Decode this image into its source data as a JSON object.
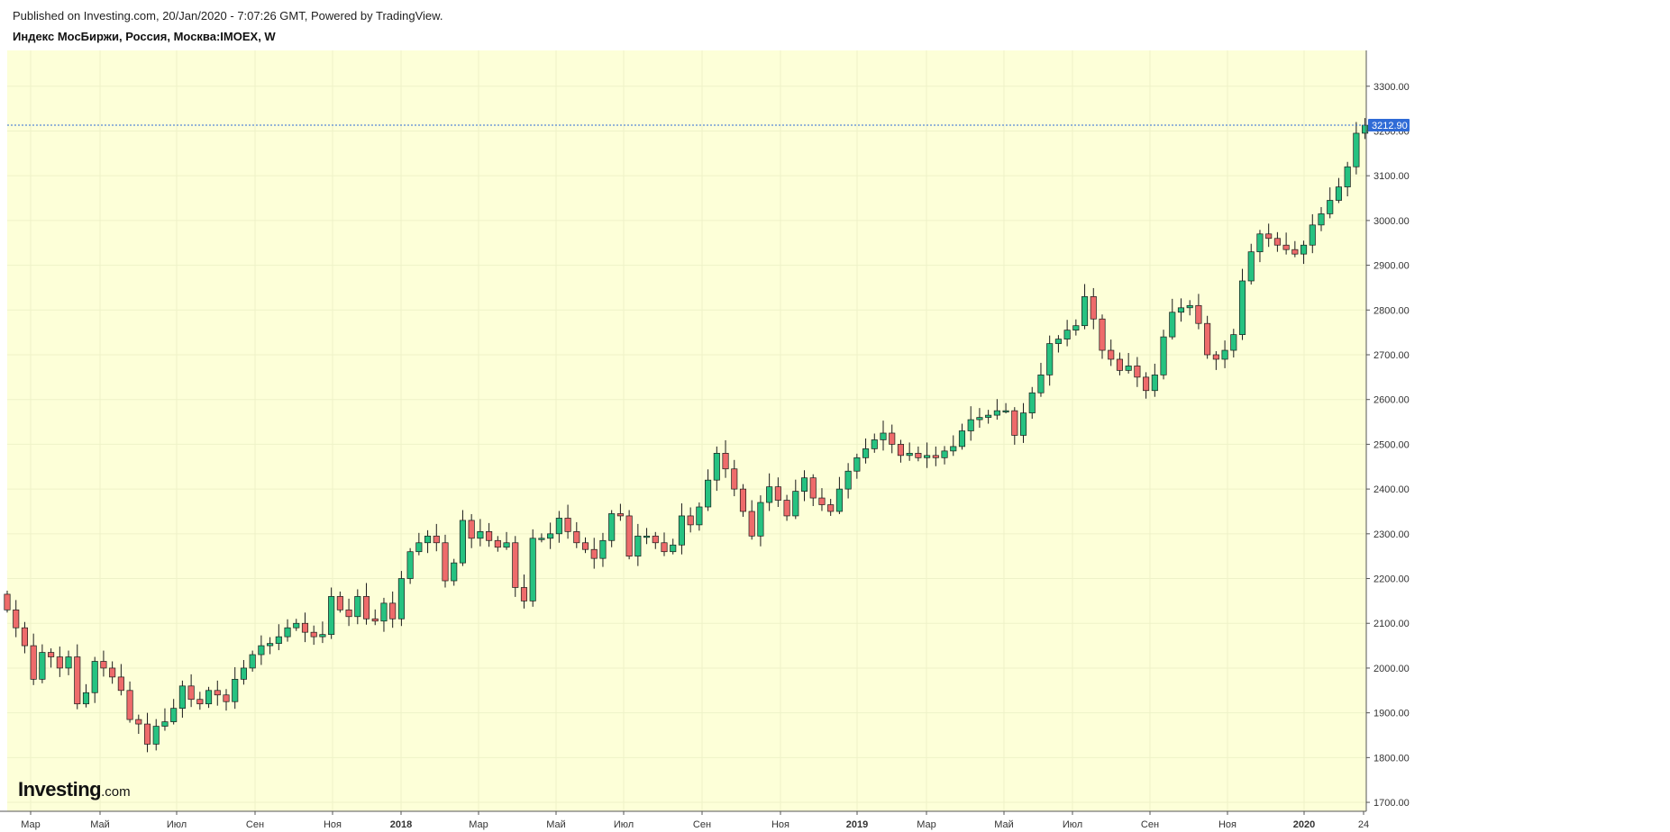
{
  "header": {
    "published": "Published on Investing.com, 20/Jan/2020 - 7:07:26 GMT, Powered by TradingView.",
    "symbol": "Индекс МосБиржи, Россия, Москва:IMOEX, W"
  },
  "logo": {
    "brand": "Investing",
    "suffix": ".com"
  },
  "colors": {
    "background": "#fdffd8",
    "up": "#26c281",
    "down": "#ee6b6b",
    "last_price": "#2f6bd6"
  },
  "chart_data": {
    "type": "candlestick",
    "interval": "W",
    "y_range": [
      1680,
      3380
    ],
    "y_ticks": [
      "1700.00",
      "1800.00",
      "1900.00",
      "2000.00",
      "2100.00",
      "2200.00",
      "2300.00",
      "2400.00",
      "2500.00",
      "2600.00",
      "2700.00",
      "2800.00",
      "2900.00",
      "3000.00",
      "3100.00",
      "3200.00",
      "3300.00"
    ],
    "y_position": "right",
    "last_price": "3212.90",
    "x_labels": [
      "Мар",
      "Май",
      "Июл",
      "Сен",
      "Ноя",
      "2018",
      "Мар",
      "Май",
      "Июл",
      "Сен",
      "Ноя",
      "2019",
      "Мар",
      "Май",
      "Июл",
      "Сен",
      "Ноя",
      "2020",
      "24"
    ],
    "x_labels_bold": [
      "2018",
      "2019",
      "2020"
    ],
    "closes": [
      2130,
      2090,
      2050,
      1975,
      2035,
      2025,
      2000,
      2025,
      1920,
      1945,
      2015,
      2000,
      1980,
      1950,
      1885,
      1875,
      1830,
      1870,
      1880,
      1910,
      1960,
      1930,
      1920,
      1950,
      1940,
      1925,
      1975,
      2000,
      2030,
      2050,
      2055,
      2070,
      2090,
      2100,
      2080,
      2070,
      2075,
      2160,
      2130,
      2115,
      2160,
      2110,
      2105,
      2145,
      2110,
      2200,
      2260,
      2280,
      2295,
      2280,
      2195,
      2235,
      2330,
      2290,
      2305,
      2285,
      2270,
      2280,
      2180,
      2150,
      2290,
      2290,
      2300,
      2335,
      2305,
      2280,
      2265,
      2245,
      2285,
      2345,
      2340,
      2250,
      2295,
      2295,
      2280,
      2260,
      2275,
      2340,
      2320,
      2360,
      2420,
      2480,
      2445,
      2400,
      2350,
      2295,
      2370,
      2405,
      2375,
      2340,
      2395,
      2425,
      2380,
      2365,
      2350,
      2400,
      2440,
      2470,
      2490,
      2510,
      2525,
      2500,
      2475,
      2480,
      2470,
      2475,
      2470,
      2485,
      2495,
      2530,
      2555,
      2560,
      2565,
      2575,
      2575,
      2520,
      2570,
      2615,
      2655,
      2725,
      2735,
      2755,
      2765,
      2830,
      2780,
      2710,
      2690,
      2665,
      2675,
      2650,
      2620,
      2655,
      2740,
      2795,
      2805,
      2810,
      2770,
      2700,
      2690,
      2710,
      2745,
      2865,
      2930,
      2970,
      2960,
      2945,
      2935,
      2925,
      2945,
      2990,
      3015,
      3045,
      3075,
      3120,
      3195,
      3212.9
    ]
  }
}
